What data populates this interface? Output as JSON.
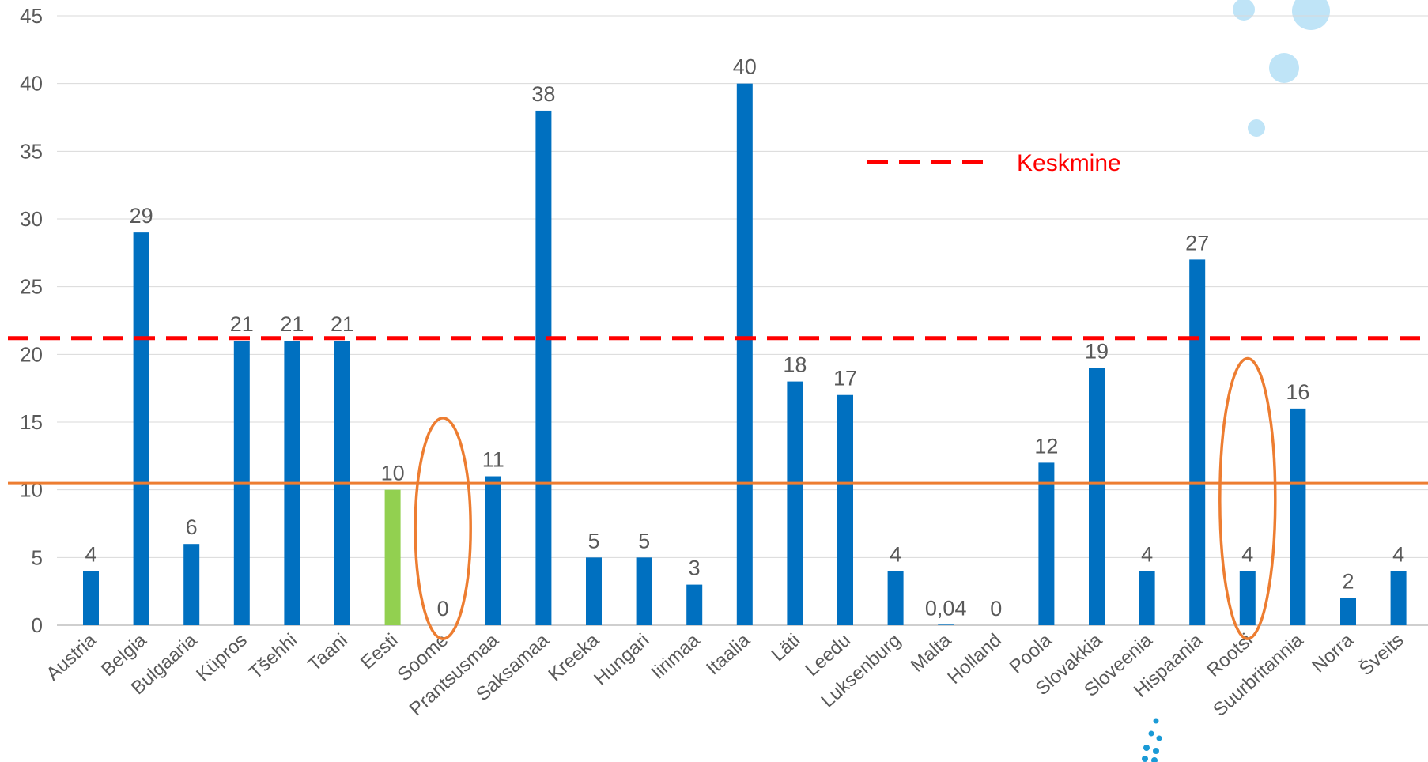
{
  "chart_data": {
    "type": "bar",
    "title": "",
    "xlabel": "",
    "ylabel": "",
    "ylim": [
      0,
      45
    ],
    "yticks": [
      0,
      5,
      10,
      15,
      20,
      25,
      30,
      35,
      40,
      45
    ],
    "grid": true,
    "categories": [
      "Austria",
      "Belgia",
      "Bulgaaria",
      "Küpros",
      "Tšehhi",
      "Taani",
      "Eesti",
      "Soome",
      "Prantsusmaa",
      "Saksamaa",
      "Kreeka",
      "Hungari",
      "Iirimaa",
      "Itaalia",
      "Läti",
      "Leedu",
      "Luksenburg",
      "Malta",
      "Holland",
      "Poola",
      "Slovakkia",
      "Sloveenia",
      "Hispaania",
      "Rootsi",
      "Suurbritannia",
      "Norra",
      "Šveits"
    ],
    "values": [
      4,
      29,
      6,
      21,
      21,
      21,
      10,
      0,
      11,
      38,
      5,
      5,
      3,
      40,
      18,
      17,
      4,
      0.04,
      0,
      12,
      19,
      4,
      27,
      4,
      16,
      2,
      4
    ],
    "data_labels": [
      "4",
      "29",
      "6",
      "21",
      "21",
      "21",
      "10",
      "0",
      "11",
      "38",
      "5",
      "5",
      "3",
      "40",
      "18",
      "17",
      "4",
      "0,04",
      "0",
      "12",
      "19",
      "4",
      "27",
      "4",
      "16",
      "2",
      "4"
    ],
    "bar_color": "#0070c0",
    "highlight_category": "Eesti",
    "highlight_color": "#92d050",
    "reference_lines": [
      {
        "label": "Keskmine",
        "value": 21.2,
        "style": "dashed",
        "color": "#ff0000"
      },
      {
        "value": 10.5,
        "style": "solid",
        "color": "#ed7d31"
      }
    ],
    "circled_categories": [
      "Soome",
      "Rootsi"
    ],
    "circle_color": "#ed7d31",
    "legend": {
      "entries": [
        "Keskmine"
      ],
      "position": "top-right"
    },
    "decoration_color": "#bfe4f7",
    "dots_color": "#1a9ad6"
  }
}
